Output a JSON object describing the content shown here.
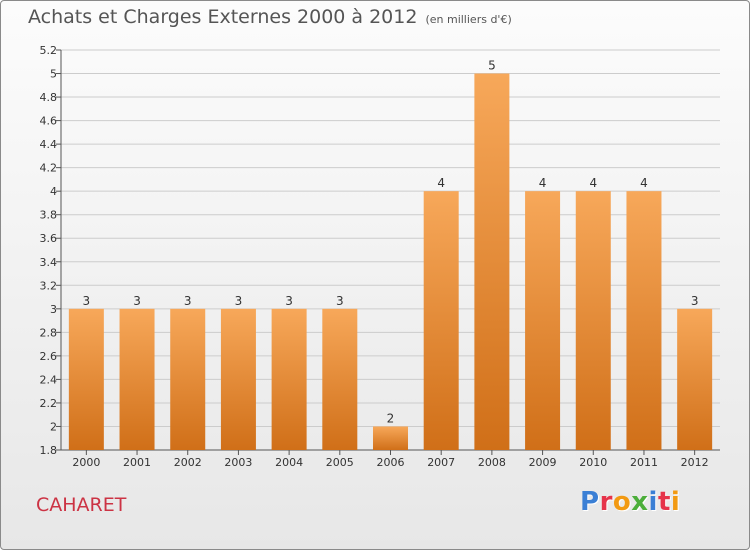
{
  "header": {
    "title": "Achats et Charges Externes 2000 à 2012",
    "unit": "(en milliers d'€)"
  },
  "footer": {
    "commune": "CAHARET",
    "logo": [
      "P",
      "r",
      "o",
      "x",
      "i",
      "t",
      "i"
    ],
    "logo_colors": [
      "#3a7fd5",
      "#e6334a",
      "#f29a12",
      "#4cae3a",
      "#3a7fd5",
      "#e6334a",
      "#f29a12"
    ]
  },
  "colors": {
    "bar_top": "#f7a85a",
    "bar_bottom": "#d06f18",
    "grid": "#cccccc"
  },
  "chart_data": {
    "type": "bar",
    "title": "Achats et Charges Externes 2000 à 2012",
    "subtitle": "(en milliers d'€)",
    "categories": [
      "2000",
      "2001",
      "2002",
      "2003",
      "2004",
      "2005",
      "2006",
      "2007",
      "2008",
      "2009",
      "2010",
      "2011",
      "2012"
    ],
    "values": [
      3,
      3,
      3,
      3,
      3,
      3,
      2,
      4,
      5,
      4,
      4,
      4,
      3
    ],
    "data_labels": [
      "3",
      "3",
      "3",
      "3",
      "3",
      "3",
      "2",
      "4",
      "5",
      "4",
      "4",
      "4",
      "3"
    ],
    "bar_heights": [
      3,
      3,
      3,
      3,
      3,
      3,
      2,
      4,
      5,
      4,
      4,
      4,
      3
    ],
    "ylim": [
      1.8,
      5.2
    ],
    "yticks": [
      "1.8",
      "2",
      "2.2",
      "2.4",
      "2.6",
      "2.8",
      "3",
      "3.2",
      "3.4",
      "3.6",
      "3.8",
      "4",
      "4.2",
      "4.4",
      "4.6",
      "4.8",
      "5",
      "5.2"
    ],
    "grid": true
  }
}
